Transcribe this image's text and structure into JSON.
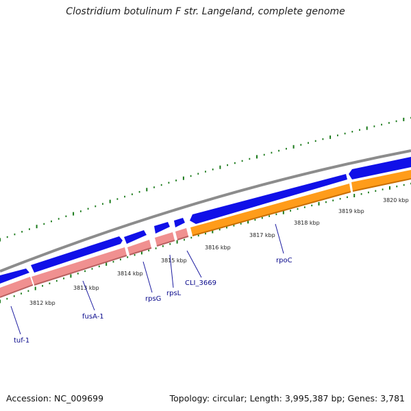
{
  "title": "Clostridium botulinum F str. Langeland, complete genome",
  "accession": "Accession: NC_009699",
  "summary": "Topology: circular; Length: 3,995,387 bp; Genes: 3,781",
  "colors": {
    "backbone": "#8c8c8c",
    "forward_gene": "#1010e8",
    "reverse_rna": "#f09090",
    "reverse_rna_shadow": "#b86060",
    "reverse_orange": "#ff9c1a",
    "reverse_orange_shadow": "#c86e00",
    "tick": "#1a7a1a",
    "label_line": "#1a1aa0"
  },
  "scale": {
    "tick_labels": [
      "3812 kbp",
      "3813 kbp",
      "3814 kbp",
      "3815 kbp",
      "3816 kbp",
      "3817 kbp",
      "3818 kbp",
      "3819 kbp",
      "3820 kbp"
    ]
  },
  "genes": {
    "labels": [
      "tuf-1",
      "fusA-1",
      "rpsG",
      "rpsL",
      "CLI_3669",
      "rpoC"
    ]
  }
}
